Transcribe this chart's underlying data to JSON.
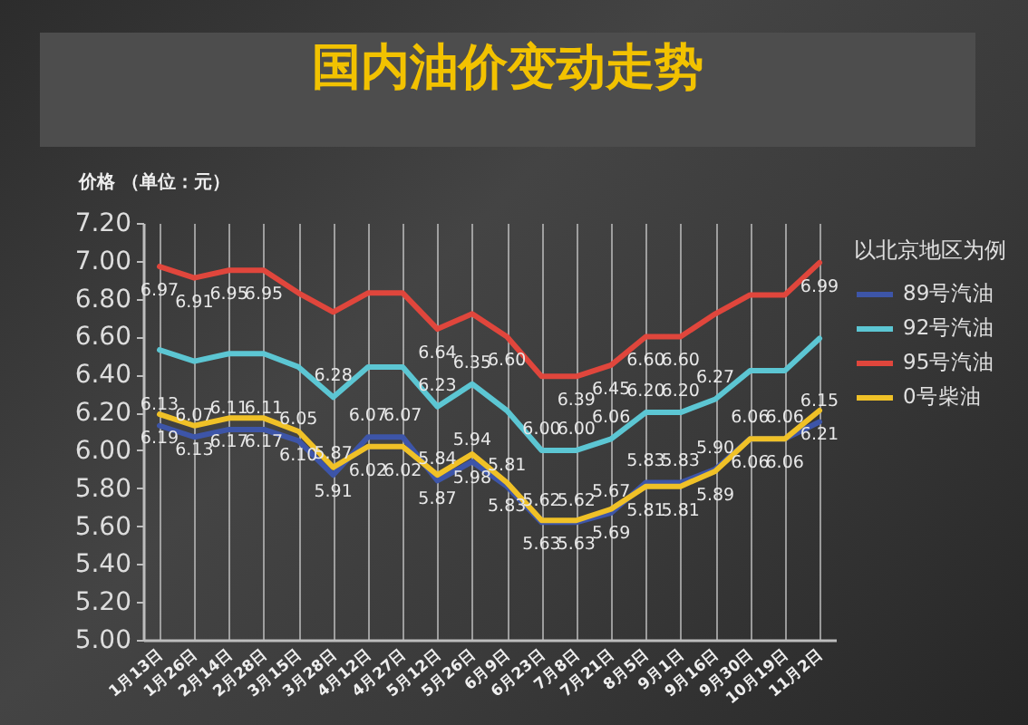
{
  "chart_data": {
    "type": "line",
    "title": "国内油价变动走势",
    "ylabel": "价格 （单位：元）",
    "legend_title": "以北京地区为例",
    "legend": "right",
    "grid": "x",
    "categories": [
      "1月13日",
      "1月26日",
      "2月14日",
      "2月28日",
      "3月15日",
      "3月28日",
      "4月12日",
      "4月27日",
      "5月12日",
      "5月26日",
      "6月9日",
      "6月23日",
      "7月8日",
      "7月21日",
      "8月5日",
      "9月1日",
      "9月16日",
      "9月30日",
      "10月19日",
      "11月2日"
    ],
    "ylim": [
      5,
      7.2
    ],
    "yticks": [
      {
        "value": 5,
        "label": "5.00"
      },
      {
        "value": 5.2,
        "label": "5.20"
      },
      {
        "value": 5.4,
        "label": "5.40"
      },
      {
        "value": 5.6,
        "label": "5.60"
      },
      {
        "value": 5.8,
        "label": "5.80"
      },
      {
        "value": 6,
        "label": "6.00"
      },
      {
        "value": 6.2,
        "label": "6.20"
      },
      {
        "value": 6.4,
        "label": "6.40"
      },
      {
        "value": 6.6,
        "label": "6.60"
      },
      {
        "value": 6.8,
        "label": "6.80"
      },
      {
        "value": 7,
        "label": "7.00"
      },
      {
        "value": 7.2,
        "label": "7.20"
      }
    ],
    "series": [
      {
        "name": "89号汽油",
        "color": "#3d55a8",
        "values": [
          6.13,
          6.07,
          6.11,
          6.11,
          6.05,
          5.87,
          6.07,
          6.07,
          5.84,
          5.94,
          5.81,
          5.62,
          5.62,
          5.67,
          5.83,
          5.83,
          5.9,
          6.06,
          6.06,
          6.15
        ],
        "value_labels": [
          "6.13",
          "6.07",
          "6.11",
          "6.11",
          "6.05",
          "5.87",
          "6.07",
          "6.07",
          "5.84",
          "5.94",
          "5.81",
          "5.62",
          "5.62",
          "5.67",
          "5.83",
          "5.83",
          "5.90",
          "6.06",
          "6.06",
          "6.15"
        ]
      },
      {
        "name": "92号汽油",
        "color": "#5cc6d3",
        "values": [
          6.53,
          6.47,
          6.51,
          6.51,
          6.44,
          6.28,
          6.44,
          6.44,
          6.23,
          6.35,
          6.21,
          6.0,
          6.0,
          6.06,
          6.2,
          6.2,
          6.27,
          6.42,
          6.42,
          6.59
        ],
        "value_labels": [
          null,
          null,
          null,
          null,
          null,
          "6.28",
          null,
          null,
          "6.23",
          "6.35",
          null,
          "6.00",
          "6.00",
          "6.06",
          "6.20",
          "6.20",
          "6.27",
          null,
          null,
          null
        ]
      },
      {
        "name": "95号汽油",
        "color": "#e0463c",
        "values": [
          6.97,
          6.91,
          6.95,
          6.95,
          6.83,
          6.73,
          6.83,
          6.83,
          6.64,
          6.72,
          6.6,
          6.39,
          6.39,
          6.45,
          6.6,
          6.6,
          6.72,
          6.82,
          6.82,
          6.99
        ],
        "value_labels": [
          "6.97",
          "6.91",
          "6.95",
          "6.95",
          null,
          null,
          null,
          null,
          "6.64",
          null,
          "6.60",
          null,
          "6.39",
          "6.45",
          "6.60",
          "6.60",
          null,
          null,
          null,
          "6.99"
        ]
      },
      {
        "name": "0号柴油",
        "color": "#f0c127",
        "values": [
          6.19,
          6.13,
          6.17,
          6.17,
          6.1,
          5.91,
          6.02,
          6.02,
          5.87,
          5.98,
          5.83,
          5.63,
          5.63,
          5.69,
          5.81,
          5.81,
          5.89,
          6.06,
          6.06,
          6.21
        ],
        "value_labels": [
          "6.19",
          "6.13",
          "6.17",
          "6.17",
          "6.10",
          "5.91",
          "6.02",
          "6.02",
          "5.87",
          "5.98",
          "5.83",
          "5.63",
          "5.63",
          "5.69",
          "5.81",
          "5.81",
          "5.89",
          "6.06",
          "6.06",
          "6.21"
        ]
      }
    ]
  }
}
